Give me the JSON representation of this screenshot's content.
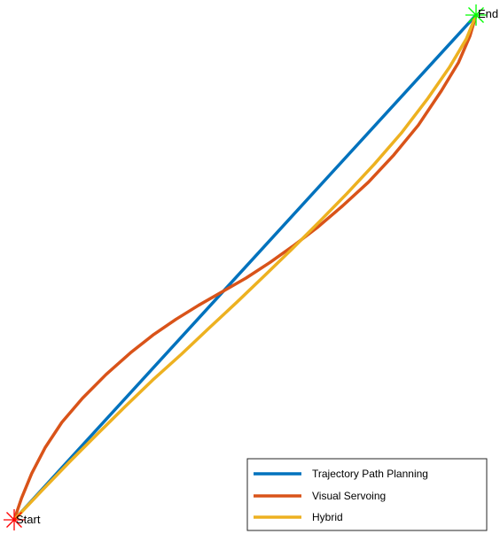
{
  "chart_data": {
    "type": "line",
    "grid": false,
    "legend_position": "bottom-right",
    "xlim": [
      0,
      1
    ],
    "ylim": [
      0,
      1
    ],
    "points": [
      {
        "name": "start",
        "label": "Start",
        "x": 0.0,
        "y": 0.0,
        "color": "#ff0000"
      },
      {
        "name": "end",
        "label": "End",
        "x": 1.0,
        "y": 1.0,
        "color": "#00ff00"
      }
    ],
    "series": [
      {
        "name": "Trajectory Path Planning",
        "color": "#0072bd",
        "x": [
          0.0,
          1.0
        ],
        "y": [
          0.0,
          1.0
        ]
      },
      {
        "name": "Visual Servoing",
        "color": "#d95319",
        "x": [
          0.0,
          0.016,
          0.038,
          0.067,
          0.103,
          0.148,
          0.199,
          0.252,
          0.302,
          0.35,
          0.399,
          0.449,
          0.502,
          0.554,
          0.603,
          0.656,
          0.711,
          0.767,
          0.822,
          0.875,
          0.925,
          0.962,
          0.987,
          1.0
        ],
        "y": [
          0.0,
          0.043,
          0.092,
          0.143,
          0.193,
          0.241,
          0.288,
          0.331,
          0.367,
          0.397,
          0.425,
          0.451,
          0.479,
          0.51,
          0.542,
          0.579,
          0.622,
          0.669,
          0.723,
          0.782,
          0.85,
          0.906,
          0.959,
          1.0
        ]
      },
      {
        "name": "Hybrid",
        "color": "#edb120",
        "x": [
          0.0,
          0.06,
          0.12,
          0.18,
          0.24,
          0.3,
          0.362,
          0.422,
          0.482,
          0.541,
          0.6,
          0.66,
          0.72,
          0.78,
          0.838,
          0.894,
          0.942,
          0.979,
          1.0
        ],
        "y": [
          0.0,
          0.058,
          0.115,
          0.17,
          0.224,
          0.277,
          0.328,
          0.38,
          0.431,
          0.483,
          0.535,
          0.59,
          0.646,
          0.705,
          0.766,
          0.833,
          0.896,
          0.953,
          1.0
        ]
      }
    ]
  }
}
